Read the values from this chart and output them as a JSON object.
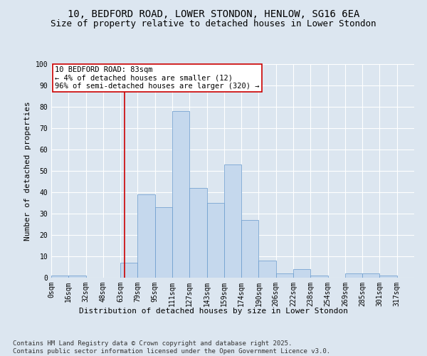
{
  "title_line1": "10, BEDFORD ROAD, LOWER STONDON, HENLOW, SG16 6EA",
  "title_line2": "Size of property relative to detached houses in Lower Stondon",
  "xlabel": "Distribution of detached houses by size in Lower Stondon",
  "ylabel": "Number of detached properties",
  "bar_color": "#c5d8ed",
  "bar_edge_color": "#6699cc",
  "background_color": "#dce6f0",
  "grid_color": "#ffffff",
  "fig_background": "#dce6f0",
  "bin_labels": [
    "0sqm",
    "16sqm",
    "32sqm",
    "48sqm",
    "63sqm",
    "79sqm",
    "95sqm",
    "111sqm",
    "127sqm",
    "143sqm",
    "159sqm",
    "174sqm",
    "190sqm",
    "206sqm",
    "222sqm",
    "238sqm",
    "254sqm",
    "269sqm",
    "285sqm",
    "301sqm",
    "317sqm"
  ],
  "bar_values": [
    1,
    1,
    0,
    0,
    7,
    39,
    33,
    78,
    42,
    35,
    53,
    27,
    8,
    2,
    4,
    1,
    0,
    2,
    2,
    1,
    0
  ],
  "vline_color": "#cc0000",
  "vline_pos": 4.25,
  "annotation_text": "10 BEDFORD ROAD: 83sqm\n← 4% of detached houses are smaller (12)\n96% of semi-detached houses are larger (320) →",
  "annotation_box_color": "#ffffff",
  "annotation_box_edge": "#cc0000",
  "ylim": [
    0,
    100
  ],
  "yticks": [
    0,
    10,
    20,
    30,
    40,
    50,
    60,
    70,
    80,
    90,
    100
  ],
  "footnote": "Contains HM Land Registry data © Crown copyright and database right 2025.\nContains public sector information licensed under the Open Government Licence v3.0.",
  "title_fontsize": 10,
  "subtitle_fontsize": 9,
  "axis_label_fontsize": 8,
  "tick_fontsize": 7,
  "annotation_fontsize": 7.5,
  "footnote_fontsize": 6.5
}
